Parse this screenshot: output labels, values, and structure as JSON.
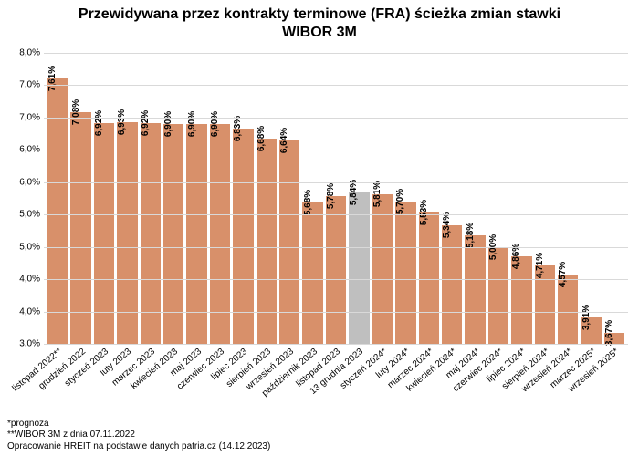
{
  "chart": {
    "type": "bar",
    "title_line1": "Przewidywana przez kontrakty terminowe (FRA) ścieżka zmian stawki",
    "title_line2": "WIBOR 3M",
    "title_fontsize": 16,
    "background_color": "#ffffff",
    "grid_color": "#d9d9d9",
    "axis_color": "#bfbfbf",
    "tick_fontsize": 10,
    "barlabel_fontsize": 10,
    "xlabel_fontsize": 10,
    "bar_color": "#d8906a",
    "bar_highlight_color": "#bfbfbf",
    "ylim_min": 3.5,
    "ylim_max": 8.0,
    "ytick_step": 0.5,
    "ytick_suffix": ",0%",
    "categories": [
      "listopad 2022**",
      "grudzień 2022",
      "styczeń 2023",
      "luty 2023",
      "marzec 2023",
      "kwiecień 2023",
      "maj 2023",
      "czerwiec 2023",
      "lipiec 2023",
      "sierpień 2023",
      "wrzesień 2023",
      "październik 2023",
      "listopad 2023",
      "13 grudnia 2023",
      "styczeń 2024*",
      "luty 2024*",
      "marzec 2024*",
      "kwiecień 2024*",
      "maj 2024*",
      "czerwiec 2024*",
      "lipiec 2024*",
      "sierpień 2024*",
      "wrzesień 2024*",
      "marzec 2025*",
      "wrzesień 2025*"
    ],
    "values": [
      7.61,
      7.08,
      6.92,
      6.93,
      6.92,
      6.9,
      6.9,
      6.9,
      6.83,
      6.68,
      6.64,
      5.68,
      5.78,
      5.84,
      5.81,
      5.7,
      5.53,
      5.34,
      5.18,
      5.0,
      4.86,
      4.71,
      4.57,
      3.91,
      3.67
    ],
    "value_labels": [
      "7,61%",
      "7,08%",
      "6,92%",
      "6,93%",
      "6,92%",
      "6,90%",
      "6,90%",
      "6,90%",
      "6,83%",
      "6,68%",
      "6,64%",
      "5,68%",
      "5,78%",
      "5,84%",
      "5,81%",
      "5,70%",
      "5,53%",
      "5,34%",
      "5,18%",
      "5,00%",
      "4,86%",
      "4,71%",
      "4,57%",
      "3,91%",
      "3,67%"
    ],
    "highlight_index": 13,
    "footnotes": [
      "*prognoza",
      "**WIBOR 3M z dnia 07.11.2022",
      "Opracowanie HREIT na podstawie danych patria.cz (14.12.2023)"
    ],
    "footnote_fontsize": 10
  }
}
